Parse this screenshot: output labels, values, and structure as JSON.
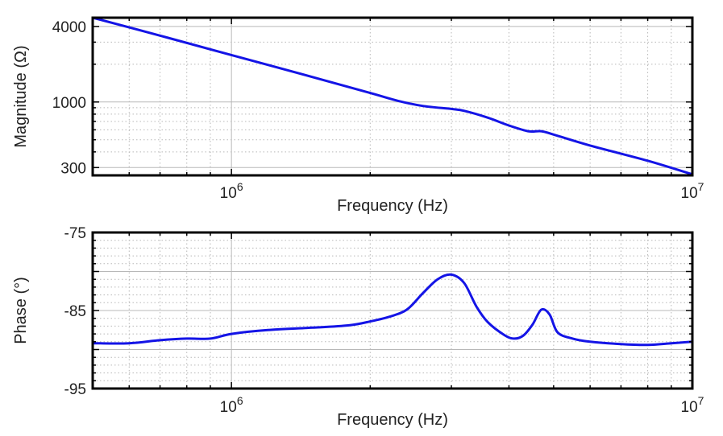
{
  "colors": {
    "series": "#1414e6",
    "axes": "#000000",
    "grid": "#b8b8b8"
  },
  "chart_data": [
    {
      "type": "line",
      "xscale": "log",
      "yscale": "log",
      "grid": true,
      "xlim": [
        500000,
        10000000
      ],
      "ylim": [
        260,
        4700
      ],
      "xlabel": "Frequency (Hz)",
      "ylabel": "Magnitude (Ω)",
      "x_ticks": [
        {
          "value": 1000000,
          "base": "10",
          "exp": "6"
        },
        {
          "value": 10000000,
          "base": "10",
          "exp": "7"
        }
      ],
      "y_ticks": [
        {
          "value": 4000,
          "label": "4000"
        },
        {
          "value": 1000,
          "label": "1000"
        },
        {
          "value": 300,
          "label": "300"
        }
      ],
      "series": [
        {
          "x": [
            500000,
            700000,
            1000000,
            1500000,
            2000000,
            2300000,
            2600000,
            3000000,
            3200000,
            3600000,
            4000000,
            4400000,
            4700000,
            5000000,
            6000000,
            8000000,
            10000000
          ],
          "y": [
            4700,
            3380,
            2370,
            1580,
            1180,
            1020,
            930,
            880,
            850,
            750,
            650,
            585,
            585,
            550,
            450,
            340,
            265
          ]
        }
      ]
    },
    {
      "type": "line",
      "xscale": "log",
      "grid": true,
      "xlim": [
        500000,
        10000000
      ],
      "ylim": [
        -95,
        -75
      ],
      "xlabel": "Frequency (Hz)",
      "ylabel": "Phase (°)",
      "x_ticks": [
        {
          "value": 1000000,
          "base": "10",
          "exp": "6"
        },
        {
          "value": 10000000,
          "base": "10",
          "exp": "7"
        }
      ],
      "y_ticks": [
        {
          "value": -75,
          "label": "-75"
        },
        {
          "value": -85,
          "label": "-85"
        },
        {
          "value": -95,
          "label": "-95"
        }
      ],
      "series": [
        {
          "x": [
            500000,
            600000,
            700000,
            800000,
            900000,
            1000000,
            1200000,
            1500000,
            1800000,
            2000000,
            2200000,
            2400000,
            2600000,
            2800000,
            3000000,
            3200000,
            3400000,
            3600000,
            3900000,
            4100000,
            4300000,
            4500000,
            4700000,
            4900000,
            5100000,
            5500000,
            6000000,
            7000000,
            8000000,
            9000000,
            10000000
          ],
          "y": [
            -89.2,
            -89.2,
            -88.8,
            -88.6,
            -88.6,
            -88.0,
            -87.5,
            -87.2,
            -86.9,
            -86.4,
            -85.8,
            -84.9,
            -82.8,
            -81.0,
            -80.4,
            -81.5,
            -84.5,
            -86.5,
            -88.1,
            -88.6,
            -88.2,
            -86.8,
            -84.9,
            -85.5,
            -87.8,
            -88.6,
            -89.0,
            -89.3,
            -89.4,
            -89.2,
            -89.0
          ]
        }
      ]
    }
  ]
}
